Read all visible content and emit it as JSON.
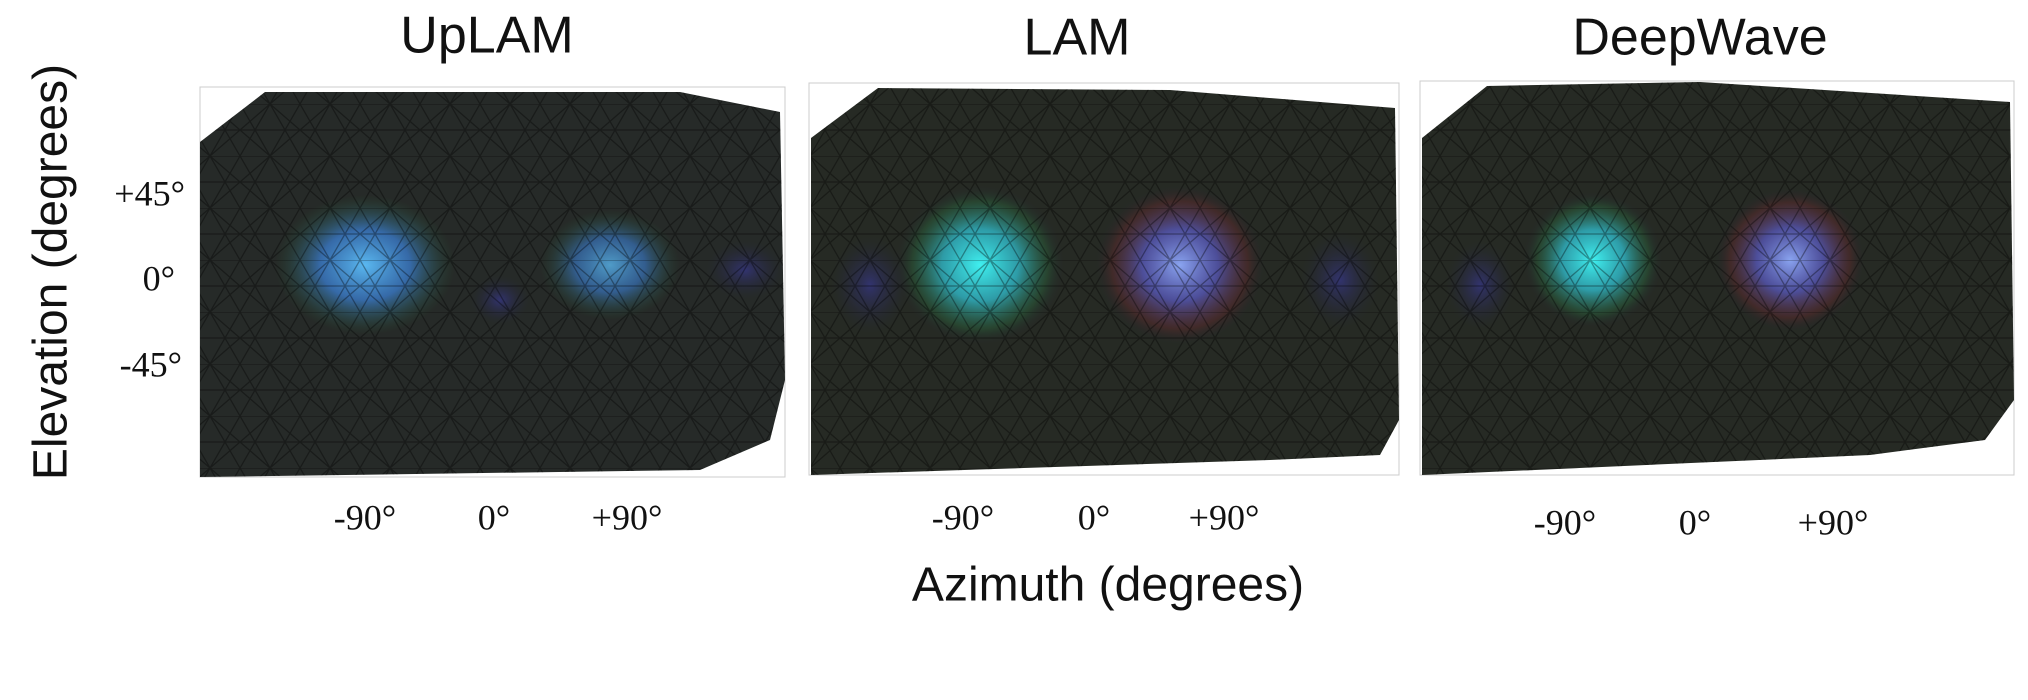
{
  "panels": [
    {
      "title": "UpLAM",
      "x_ticks": [
        "-90°",
        "0°",
        "+90°"
      ]
    },
    {
      "title": "LAM",
      "x_ticks": [
        "-90°",
        "0°",
        "+90°"
      ]
    },
    {
      "title": "DeepWave",
      "x_ticks": [
        "-90°",
        "0°",
        "+90°"
      ]
    }
  ],
  "y_axis": {
    "label": "Elevation (degrees)",
    "ticks": [
      "+45°",
      "0°",
      "-45°"
    ]
  },
  "x_axis": {
    "label": "Azimuth (degrees)"
  }
}
